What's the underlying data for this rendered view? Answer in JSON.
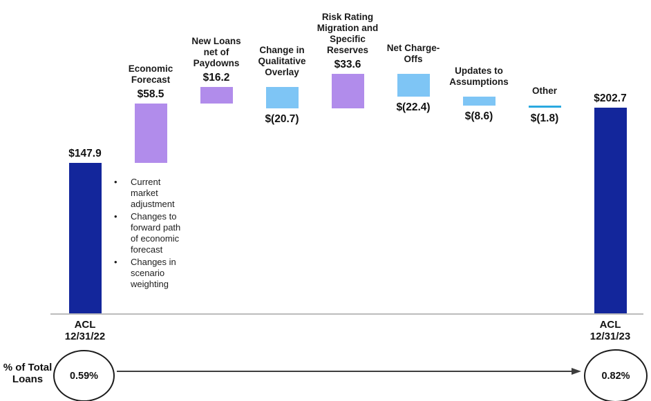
{
  "chart_data": {
    "type": "waterfall",
    "title": "",
    "legend": "none",
    "grid": "off",
    "value_axis": "hidden",
    "value_range_implied": [
      0,
      235.5
    ],
    "colors": {
      "navy": "#13269b",
      "purple": "#b18ceb",
      "sky": "#7ec5f5",
      "cyan": "#2aa9e0",
      "axis": "#bcbcbc"
    },
    "columns": [
      {
        "id": "acl-2022",
        "heading": "",
        "axis_label": "ACL\n12/31/22",
        "value": 147.9,
        "cumulative": 147.9,
        "value_label": "$147.9",
        "kind": "total",
        "color": "navy"
      },
      {
        "id": "economic-forecast",
        "heading": "Economic\nForecast",
        "axis_label": "",
        "value": 58.5,
        "cumulative": 206.4,
        "value_label": "$58.5",
        "kind": "increase",
        "color": "purple"
      },
      {
        "id": "new-loans-net-of-paydowns",
        "heading": "New Loans\nnet of\nPaydowns",
        "axis_label": "",
        "value": 16.2,
        "cumulative": 222.6,
        "value_label": "$16.2",
        "kind": "increase",
        "color": "purple"
      },
      {
        "id": "change-in-qualitative-overlay",
        "heading": "Change in\nQualitative\nOverlay",
        "axis_label": "",
        "value": -20.7,
        "cumulative": 201.9,
        "value_label": "$(20.7)",
        "kind": "decrease",
        "color": "sky"
      },
      {
        "id": "risk-rating-migration-specific-reserves",
        "heading": "Risk Rating\nMigration and\nSpecific\nReserves",
        "axis_label": "",
        "value": 33.6,
        "cumulative": 235.5,
        "value_label": "$33.6",
        "kind": "increase",
        "color": "purple"
      },
      {
        "id": "net-charge-offs",
        "heading": "Net Charge-\nOffs",
        "axis_label": "",
        "value": -22.4,
        "cumulative": 213.1,
        "value_label": "$(22.4)",
        "kind": "decrease",
        "color": "sky"
      },
      {
        "id": "updates-to-assumptions",
        "heading": "Updates to\nAssumptions",
        "axis_label": "",
        "value": -8.6,
        "cumulative": 204.5,
        "value_label": "$(8.6)",
        "kind": "decrease",
        "color": "sky"
      },
      {
        "id": "other",
        "heading": "Other",
        "axis_label": "",
        "value": -1.8,
        "cumulative": 202.7,
        "value_label": "$(1.8)",
        "kind": "decrease",
        "color": "cyan"
      },
      {
        "id": "acl-2023",
        "heading": "",
        "axis_label": "ACL\n12/31/23",
        "value": 202.7,
        "cumulative": 202.7,
        "value_label": "$202.7",
        "kind": "total",
        "color": "navy"
      }
    ],
    "bullets": [
      "Current market adjustment",
      "Changes to forward path of economic forecast",
      "Changes in scenario weighting"
    ],
    "footer": {
      "label": "% of Total\nLoans",
      "start_pct": "0.59%",
      "end_pct": "0.82%"
    }
  }
}
